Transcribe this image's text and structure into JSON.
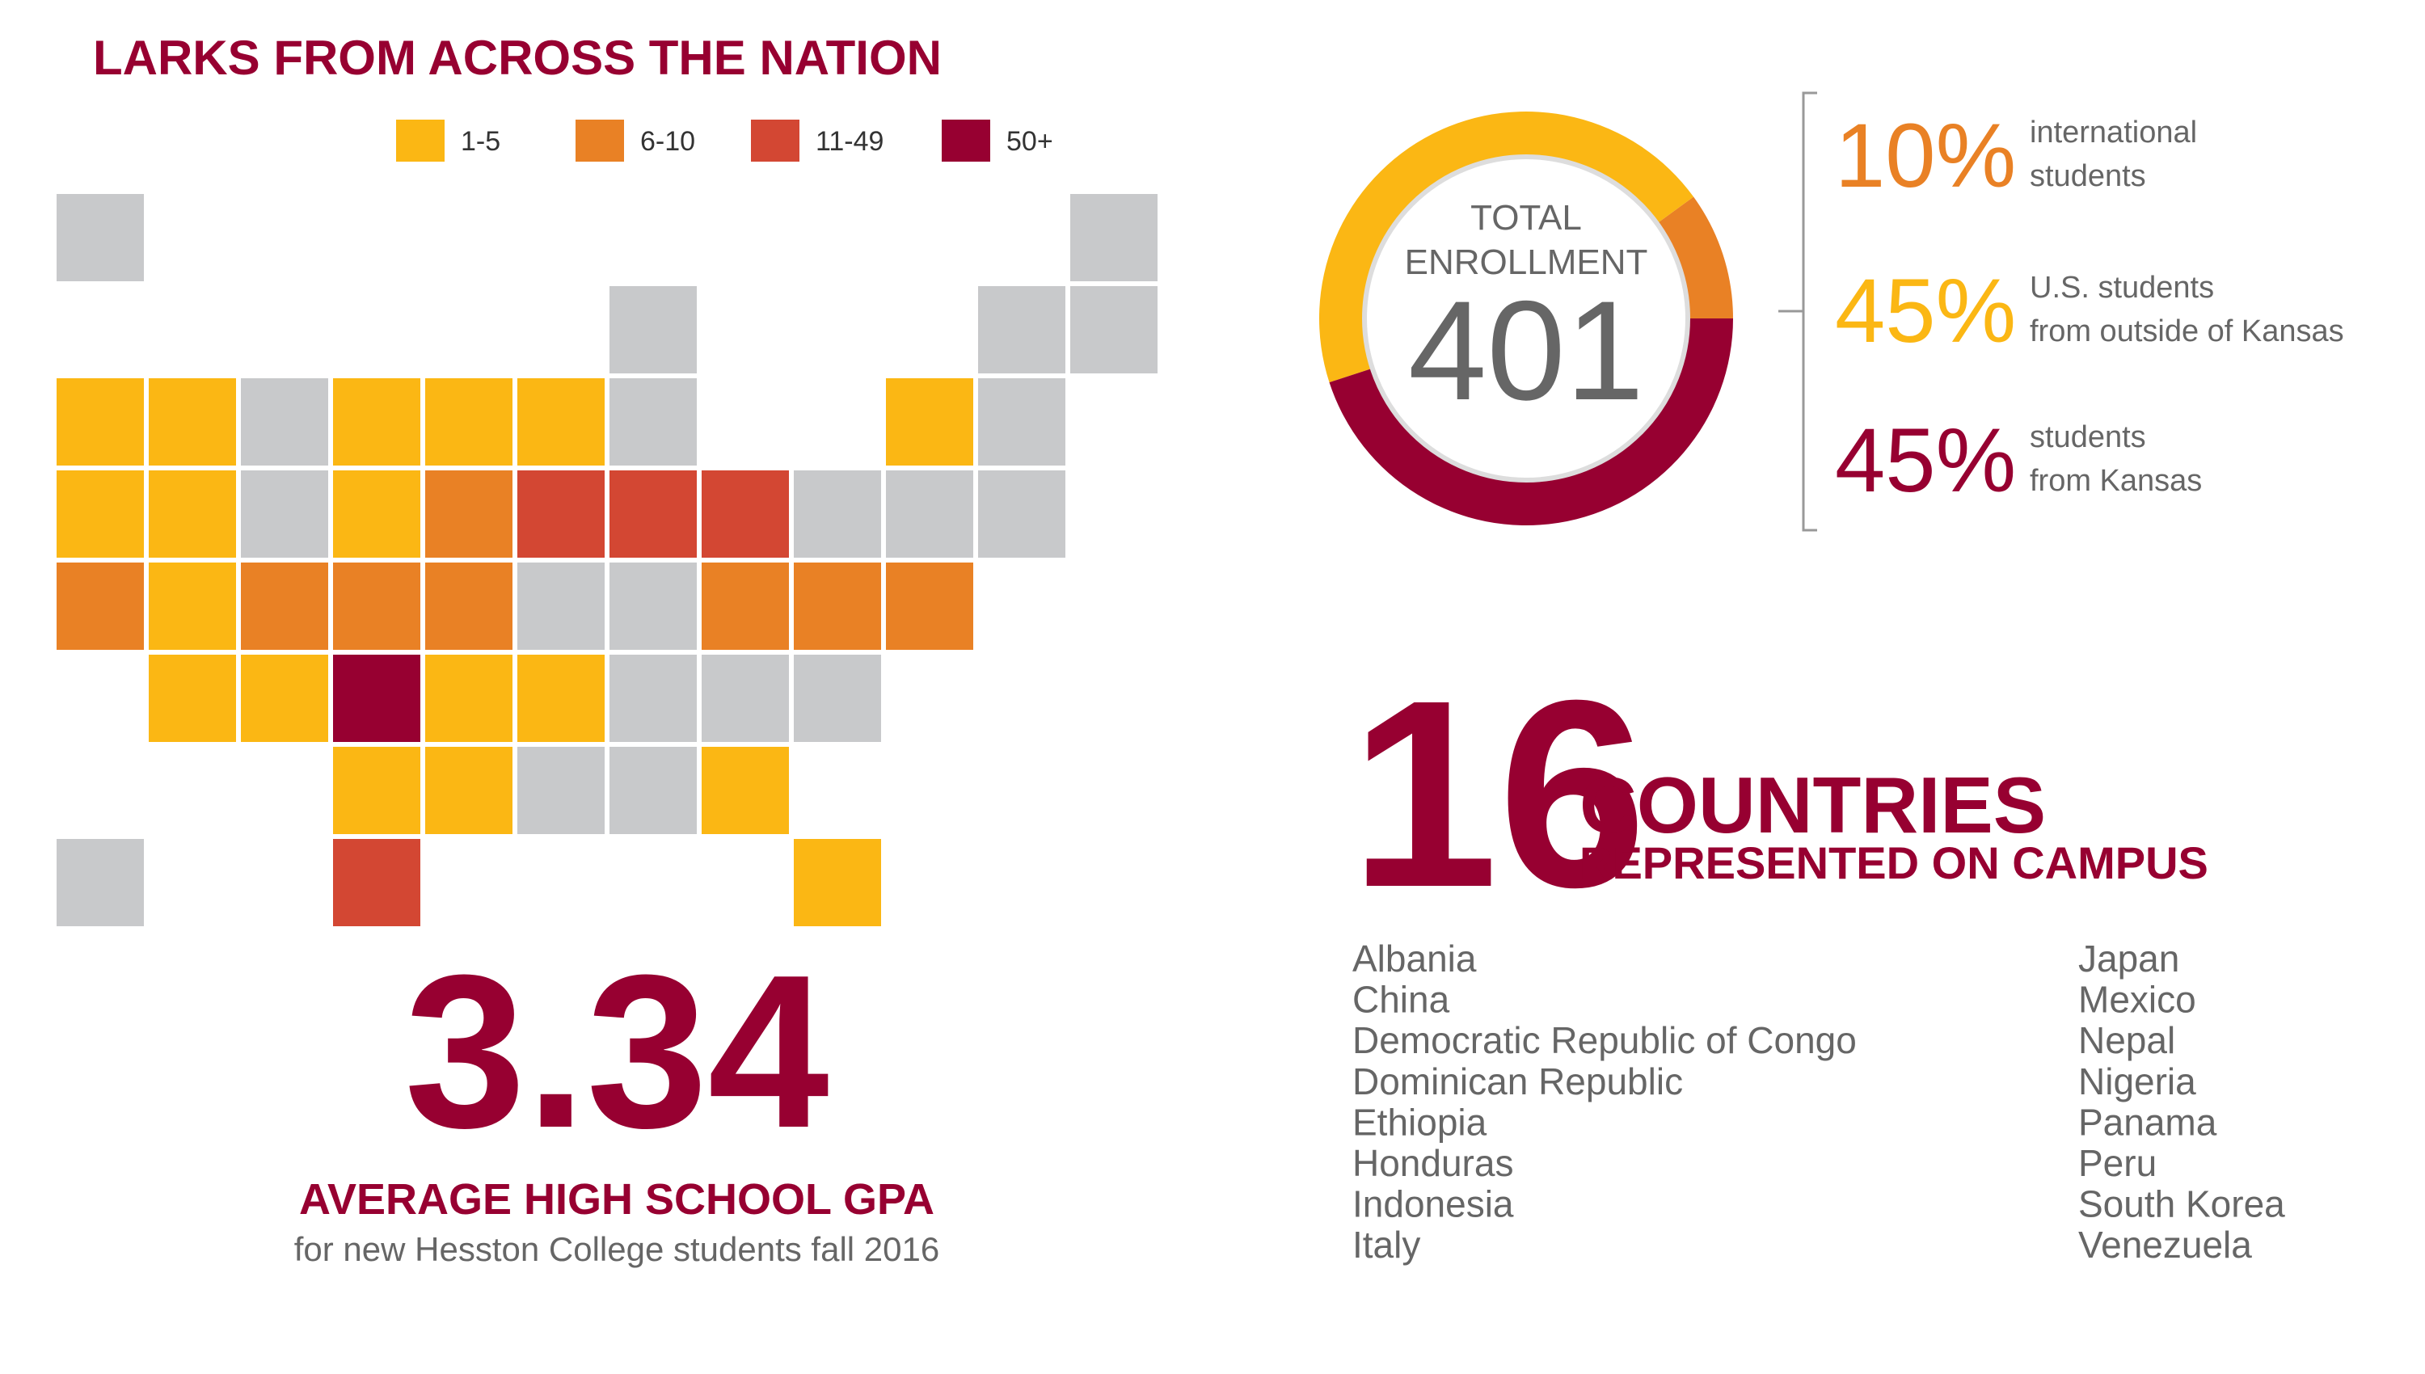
{
  "map": {
    "title": "LARKS FROM ACROSS THE NATION",
    "legend": [
      {
        "label": "1-5",
        "color": "#fbb714"
      },
      {
        "label": "6-10",
        "color": "#e98125"
      },
      {
        "label": "11-49",
        "color": "#d34733"
      },
      {
        "label": "50+",
        "color": "#970031"
      }
    ]
  },
  "chart_data": {
    "type": "donut",
    "center_label": [
      "TOTAL",
      "ENROLLMENT"
    ],
    "total": 401,
    "values": [
      10,
      45,
      45
    ],
    "value_labels": [
      "10%",
      "45%",
      "45%"
    ],
    "colors": [
      "#e98125",
      "#fbb714",
      "#970031"
    ],
    "labels": [
      [
        "international",
        "students"
      ],
      [
        "U.S. students",
        "from outside of Kansas"
      ],
      [
        "students",
        "from Kansas"
      ]
    ]
  },
  "countries": {
    "count": 16,
    "title": "COUNTRIES",
    "subtitle": "REPRESENTED ON CAMPUS",
    "list_left": [
      "Albania",
      "China",
      "Democratic Republic of Congo",
      "Dominican Republic",
      "Ethiopia",
      "Honduras",
      "Indonesia",
      "Italy"
    ],
    "list_right": [
      "Japan",
      "Mexico",
      "Nepal",
      "Nigeria",
      "Panama",
      "Peru",
      "South Korea",
      "Venezuela"
    ]
  },
  "gpa": {
    "value": 3.34,
    "title": "AVERAGE HIGH SCHOOL GPA",
    "subtitle": "for new Hesston College students fall 2016"
  }
}
